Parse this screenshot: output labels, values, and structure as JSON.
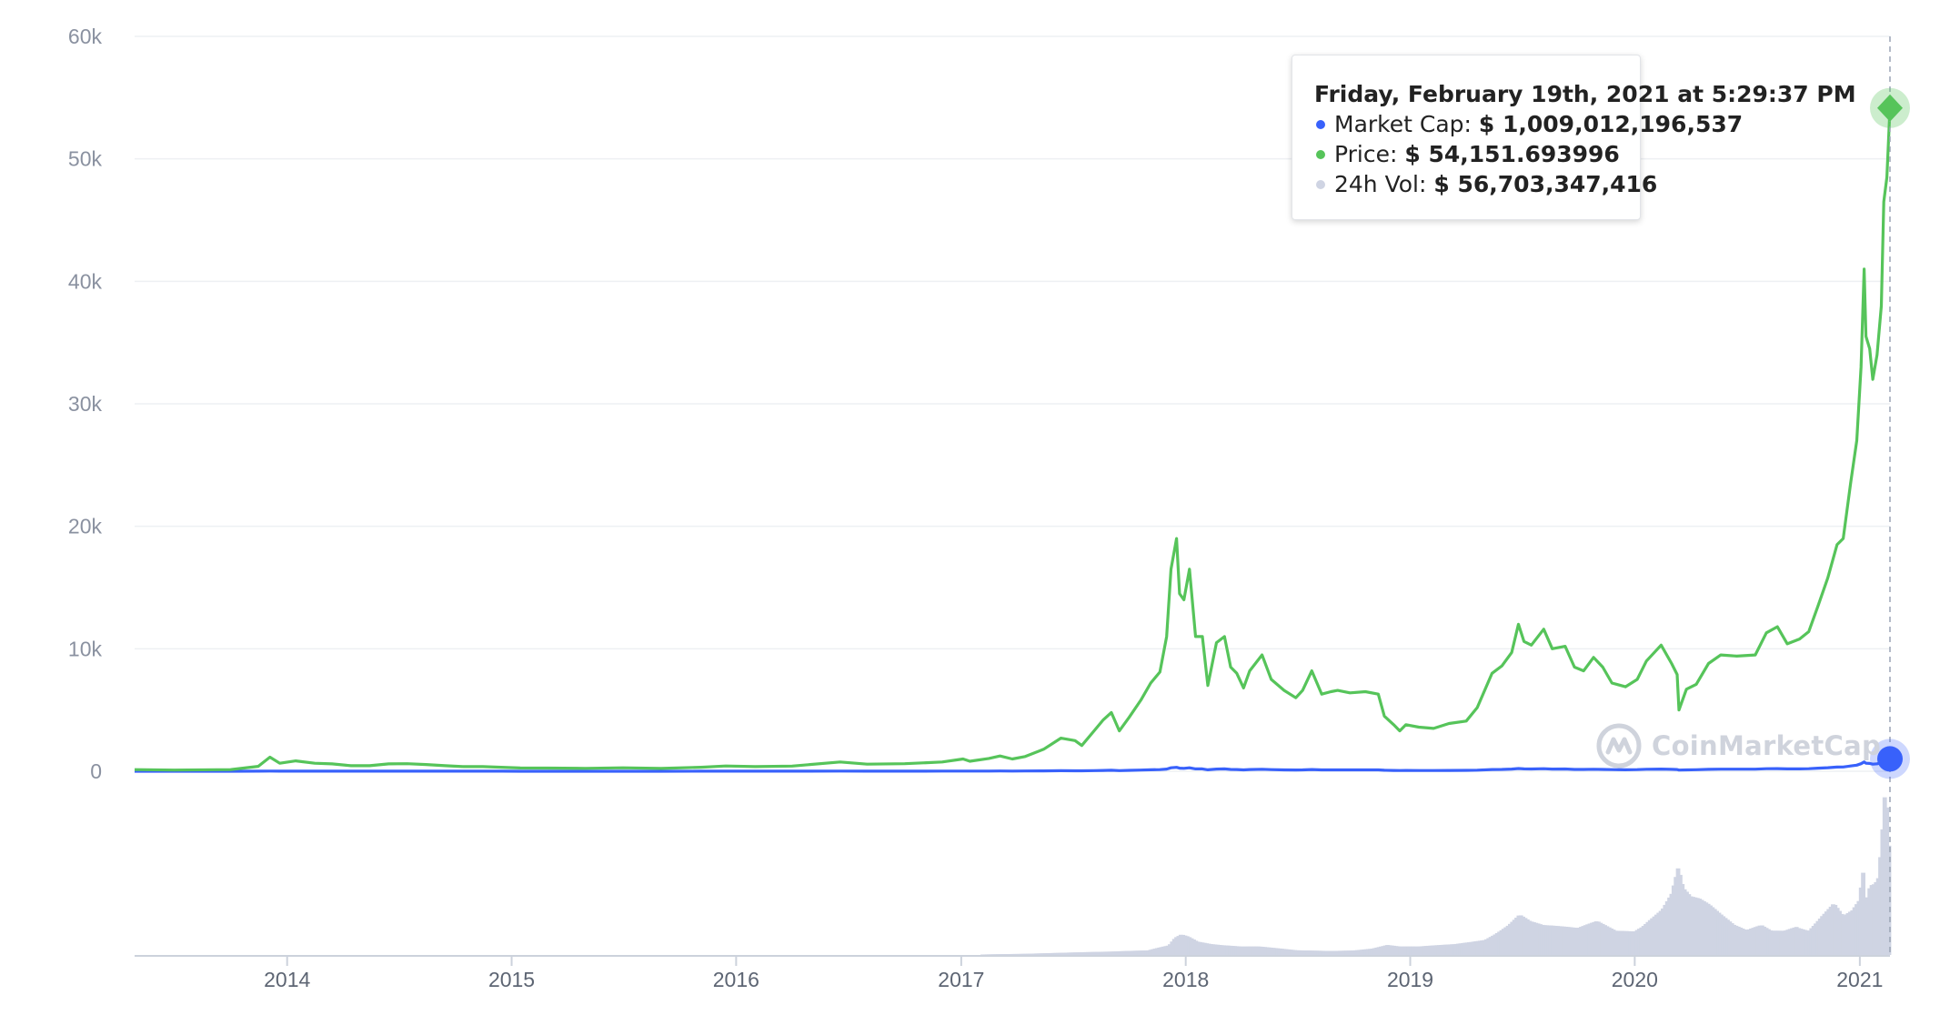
{
  "chart_data": {
    "type": "line",
    "y_ticks": [
      "60k",
      "50k",
      "40k",
      "30k",
      "20k",
      "10k",
      "0"
    ],
    "ylim": [
      0,
      60000
    ],
    "x_ticks": [
      "2014",
      "2015",
      "2016",
      "2017",
      "2018",
      "2019",
      "2020",
      "2021"
    ],
    "xlim": [
      "2013-04-28",
      "2021-02-19"
    ],
    "grid": "horizontal",
    "series": [
      {
        "name": "Market Cap",
        "color": "#3861fb",
        "x": [
          "2013-04-28",
          "2013-07-01",
          "2013-10-01",
          "2013-11-15",
          "2013-12-04",
          "2013-12-20",
          "2014-01-15",
          "2014-02-15",
          "2014-03-15",
          "2014-04-15",
          "2014-05-15",
          "2014-06-15",
          "2014-07-15",
          "2014-08-15",
          "2014-09-15",
          "2014-10-15",
          "2014-11-15",
          "2014-12-15",
          "2015-01-15",
          "2015-03-01",
          "2015-05-01",
          "2015-07-01",
          "2015-09-01",
          "2015-11-05",
          "2015-12-15",
          "2016-02-01",
          "2016-04-01",
          "2016-06-18",
          "2016-08-01",
          "2016-10-01",
          "2016-12-01",
          "2017-01-04",
          "2017-01-15",
          "2017-02-15",
          "2017-03-05",
          "2017-03-25",
          "2017-04-15",
          "2017-05-15",
          "2017-06-12",
          "2017-07-05",
          "2017-07-16",
          "2017-08-05",
          "2017-08-20",
          "2017-09-02",
          "2017-09-15",
          "2017-10-01",
          "2017-10-20",
          "2017-11-05",
          "2017-11-20",
          "2017-12-01",
          "2017-12-08",
          "2017-12-17",
          "2017-12-22",
          "2017-12-29",
          "2018-01-07",
          "2018-01-17",
          "2018-01-28",
          "2018-02-06",
          "2018-02-20",
          "2018-03-05",
          "2018-03-15",
          "2018-03-25",
          "2018-04-05",
          "2018-04-15",
          "2018-05-05",
          "2018-05-20",
          "2018-06-10",
          "2018-06-29",
          "2018-07-10",
          "2018-07-25",
          "2018-08-10",
          "2018-08-25",
          "2018-09-05",
          "2018-09-25",
          "2018-10-20",
          "2018-11-10",
          "2018-11-20",
          "2018-12-05",
          "2018-12-15",
          "2018-12-25",
          "2019-01-15",
          "2019-02-08",
          "2019-03-05",
          "2019-04-02",
          "2019-04-20",
          "2019-05-14",
          "2019-05-30",
          "2019-06-15",
          "2019-06-26",
          "2019-07-05",
          "2019-07-17",
          "2019-08-06",
          "2019-08-20",
          "2019-09-10",
          "2019-09-25",
          "2019-10-10",
          "2019-10-26",
          "2019-11-10",
          "2019-11-25",
          "2019-12-17",
          "2020-01-05",
          "2020-01-20",
          "2020-02-13",
          "2020-03-01",
          "2020-03-10",
          "2020-03-13",
          "2020-03-25",
          "2020-04-10",
          "2020-04-30",
          "2020-05-20",
          "2020-06-15",
          "2020-07-15",
          "2020-08-02",
          "2020-08-20",
          "2020-09-05",
          "2020-09-25",
          "2020-10-10",
          "2020-10-25",
          "2020-11-10",
          "2020-11-25",
          "2020-12-05",
          "2020-12-17",
          "2020-12-27",
          "2021-01-03",
          "2021-01-08",
          "2021-01-11",
          "2021-01-17",
          "2021-01-22",
          "2021-01-29",
          "2021-02-05",
          "2021-02-09",
          "2021-02-14",
          "2021-02-19"
        ],
        "values": [
          1.4,
          1.1,
          1.5,
          4.5,
          14.5,
          8.5,
          10.0,
          8.0,
          7.0,
          5.5,
          5.5,
          7.5,
          7.5,
          6.5,
          5.5,
          4.5,
          4.5,
          4.5,
          3.5,
          3.5,
          3.2,
          3.7,
          3.4,
          5.0,
          6.5,
          5.6,
          6.4,
          12.0,
          9.5,
          10.2,
          12.6,
          16.5,
          13.0,
          17.0,
          20.0,
          16.5,
          19.0,
          30.0,
          45.0,
          40.0,
          35.0,
          55.0,
          70.0,
          80.0,
          55.0,
          72.0,
          95.0,
          120.0,
          135.0,
          180.0,
          280.0,
          320.0,
          250.0,
          240.0,
          280.0,
          190.0,
          190.0,
          120.0,
          180.0,
          190.0,
          145.0,
          140.0,
          115.0,
          140.0,
          160.0,
          130.0,
          115.0,
          105.0,
          115.0,
          140.0,
          110.0,
          110.0,
          115.0,
          110.0,
          115.0,
          110.0,
          85.0,
          68.0,
          60.0,
          67.0,
          63.0,
          62.0,
          68.0,
          72.0,
          90.0,
          140.0,
          150.0,
          175.0,
          220.0,
          190.0,
          185.0,
          210.0,
          180.0,
          185.0,
          150.0,
          145.0,
          165.0,
          150.0,
          130.0,
          120.0,
          130.0,
          160.0,
          180.0,
          155.0,
          140.0,
          95.0,
          115.0,
          125.0,
          155.0,
          170.0,
          170.0,
          170.0,
          205.0,
          215.0,
          190.0,
          195.0,
          210.0,
          250.0,
          290.0,
          340.0,
          350.0,
          430.0,
          500.0,
          620.0,
          760.0,
          660.0,
          640.0,
          580.0,
          610.0,
          690.0,
          860.0,
          890.0,
          1009.0
        ],
        "unit": "billion USD (read on the shared 0-60k grid)"
      },
      {
        "name": "Price",
        "color": "#56c45a",
        "x": [
          "2013-04-28",
          "2013-07-01",
          "2013-10-01",
          "2013-11-15",
          "2013-12-04",
          "2013-12-20",
          "2014-01-15",
          "2014-02-15",
          "2014-03-15",
          "2014-04-15",
          "2014-05-15",
          "2014-06-15",
          "2014-07-15",
          "2014-08-15",
          "2014-09-15",
          "2014-10-15",
          "2014-11-15",
          "2014-12-15",
          "2015-01-15",
          "2015-03-01",
          "2015-05-01",
          "2015-07-01",
          "2015-09-01",
          "2015-11-05",
          "2015-12-15",
          "2016-02-01",
          "2016-04-01",
          "2016-06-18",
          "2016-08-01",
          "2016-10-01",
          "2016-12-01",
          "2017-01-04",
          "2017-01-15",
          "2017-02-15",
          "2017-03-05",
          "2017-03-25",
          "2017-04-15",
          "2017-05-15",
          "2017-06-12",
          "2017-07-05",
          "2017-07-16",
          "2017-08-05",
          "2017-08-20",
          "2017-09-02",
          "2017-09-15",
          "2017-10-01",
          "2017-10-20",
          "2017-11-05",
          "2017-11-20",
          "2017-12-01",
          "2017-12-08",
          "2017-12-17",
          "2017-12-22",
          "2017-12-29",
          "2018-01-07",
          "2018-01-17",
          "2018-01-28",
          "2018-02-06",
          "2018-02-20",
          "2018-03-05",
          "2018-03-15",
          "2018-03-25",
          "2018-04-05",
          "2018-04-15",
          "2018-05-05",
          "2018-05-20",
          "2018-06-10",
          "2018-06-29",
          "2018-07-10",
          "2018-07-25",
          "2018-08-10",
          "2018-08-25",
          "2018-09-05",
          "2018-09-25",
          "2018-10-20",
          "2018-11-10",
          "2018-11-20",
          "2018-12-05",
          "2018-12-15",
          "2018-12-25",
          "2019-01-15",
          "2019-02-08",
          "2019-03-05",
          "2019-04-02",
          "2019-04-20",
          "2019-05-14",
          "2019-05-30",
          "2019-06-15",
          "2019-06-26",
          "2019-07-05",
          "2019-07-17",
          "2019-08-06",
          "2019-08-20",
          "2019-09-10",
          "2019-09-25",
          "2019-10-10",
          "2019-10-26",
          "2019-11-10",
          "2019-11-25",
          "2019-12-17",
          "2020-01-05",
          "2020-01-20",
          "2020-02-13",
          "2020-03-01",
          "2020-03-10",
          "2020-03-13",
          "2020-03-25",
          "2020-04-10",
          "2020-04-30",
          "2020-05-20",
          "2020-06-15",
          "2020-07-15",
          "2020-08-02",
          "2020-08-20",
          "2020-09-05",
          "2020-09-25",
          "2020-10-10",
          "2020-10-25",
          "2020-11-10",
          "2020-11-25",
          "2020-12-05",
          "2020-12-17",
          "2020-12-27",
          "2021-01-03",
          "2021-01-08",
          "2021-01-11",
          "2021-01-17",
          "2021-01-22",
          "2021-01-29",
          "2021-02-05",
          "2021-02-09",
          "2021-02-14",
          "2021-02-19"
        ],
        "values": [
          130,
          100,
          130,
          400,
          1150,
          650,
          850,
          650,
          600,
          450,
          450,
          600,
          620,
          550,
          450,
          380,
          380,
          330,
          270,
          260,
          240,
          280,
          230,
          330,
          430,
          380,
          420,
          760,
          580,
          620,
          760,
          1000,
          820,
          1050,
          1250,
          1000,
          1200,
          1800,
          2700,
          2500,
          2100,
          3300,
          4200,
          4800,
          3300,
          4400,
          5800,
          7200,
          8100,
          11000,
          16500,
          19000,
          14500,
          14000,
          16500,
          11000,
          11000,
          7000,
          10500,
          11000,
          8500,
          8000,
          6800,
          8200,
          9500,
          7500,
          6600,
          6000,
          6600,
          8200,
          6300,
          6500,
          6600,
          6400,
          6500,
          6300,
          4500,
          3800,
          3300,
          3800,
          3600,
          3500,
          3900,
          4100,
          5200,
          8000,
          8600,
          9700,
          12000,
          10600,
          10300,
          11600,
          10000,
          10200,
          8500,
          8200,
          9300,
          8500,
          7200,
          6900,
          7500,
          9000,
          10300,
          8800,
          7900,
          5000,
          6700,
          7100,
          8800,
          9500,
          9400,
          9500,
          11300,
          11800,
          10400,
          10800,
          11400,
          13500,
          15800,
          18500,
          19000,
          23500,
          27000,
          33000,
          41000,
          35500,
          34500,
          32000,
          34000,
          38000,
          46500,
          48500,
          54151.693996
        ],
        "unit": "USD"
      }
    ],
    "volume": {
      "name": "24h Vol",
      "color": "#cfd4e3",
      "x": [
        "2013-04-28",
        "2016-12-31",
        "2017-03-01",
        "2017-05-01",
        "2017-07-01",
        "2017-09-01",
        "2017-11-01",
        "2017-12-05",
        "2017-12-15",
        "2017-12-25",
        "2018-01-05",
        "2018-01-20",
        "2018-02-10",
        "2018-03-01",
        "2018-04-01",
        "2018-05-01",
        "2018-06-01",
        "2018-07-01",
        "2018-08-01",
        "2018-09-01",
        "2018-10-01",
        "2018-11-01",
        "2018-11-25",
        "2018-12-15",
        "2019-01-15",
        "2019-02-15",
        "2019-03-15",
        "2019-04-10",
        "2019-05-01",
        "2019-05-20",
        "2019-06-10",
        "2019-06-28",
        "2019-07-15",
        "2019-08-05",
        "2019-09-01",
        "2019-10-01",
        "2019-11-01",
        "2019-12-01",
        "2020-01-01",
        "2020-01-25",
        "2020-02-15",
        "2020-03-01",
        "2020-03-12",
        "2020-03-20",
        "2020-04-01",
        "2020-04-15",
        "2020-05-01",
        "2020-05-20",
        "2020-06-10",
        "2020-07-01",
        "2020-07-25",
        "2020-08-10",
        "2020-09-01",
        "2020-09-20",
        "2020-10-10",
        "2020-11-01",
        "2020-11-20",
        "2020-12-05",
        "2020-12-20",
        "2021-01-01",
        "2021-01-06",
        "2021-01-11",
        "2021-01-18",
        "2021-01-26",
        "2021-02-01",
        "2021-02-08",
        "2021-02-12",
        "2021-02-16",
        "2021-02-19"
      ],
      "values": [
        0,
        0,
        0.5,
        1,
        1.5,
        2,
        3,
        7,
        13,
        15,
        13,
        9,
        7,
        6,
        5,
        5,
        4,
        3,
        3,
        3,
        3,
        4,
        6,
        5,
        5,
        6,
        7,
        9,
        11,
        15,
        20,
        26,
        21,
        18,
        17,
        16,
        21,
        16,
        17,
        25,
        31,
        40,
        56,
        42,
        36,
        34,
        30,
        24,
        18,
        15,
        19,
        16,
        17,
        21,
        17,
        26,
        33,
        24,
        27,
        33,
        51,
        30,
        41,
        42,
        46,
        79,
        102,
        73,
        57
      ]
    },
    "highlight": {
      "date": "2021-02-19",
      "title": "Friday, February 19th, 2021 at 5:29:37 PM",
      "rows": [
        {
          "label": "Market Cap:",
          "value": "$ 1,009,012,196,537",
          "color": "#3861fb"
        },
        {
          "label": "Price:",
          "value": "$ 54,151.693996",
          "color": "#56c45a"
        },
        {
          "label": "24h Vol:",
          "value": "$ 56,703,347,416",
          "color": "#cfd4e3"
        }
      ]
    }
  },
  "watermark": {
    "text": "CoinMarketCap",
    "icon": "coinmarketcap-logo-icon",
    "color": "#cfd3dc"
  }
}
